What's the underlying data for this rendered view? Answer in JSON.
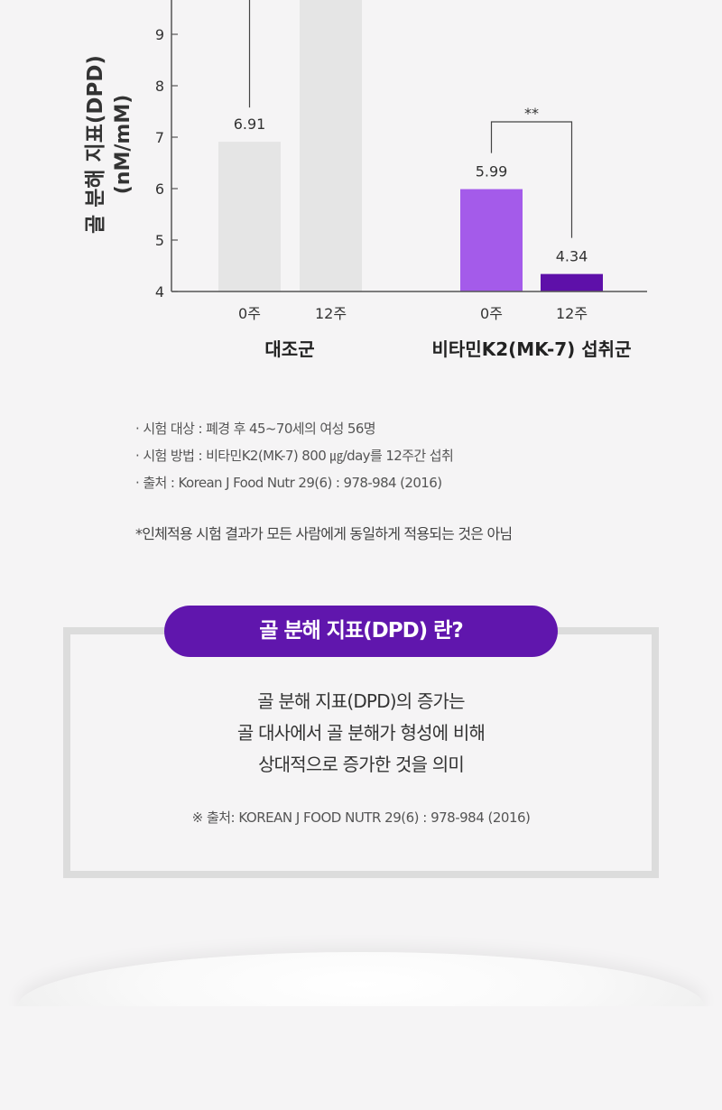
{
  "chart_data": {
    "type": "bar",
    "ylabel": "골 분해 지표(DPD)",
    "yunit": "(nM/mM)",
    "ylim": [
      4,
      10
    ],
    "yticks": [
      4,
      5,
      6,
      7,
      8,
      9
    ],
    "groups": [
      {
        "name": "대조군",
        "bars": [
          {
            "label": "0주",
            "value": 6.91,
            "value_label": "6.91",
            "color": "#e5e5e5"
          },
          {
            "label": "12주",
            "value": 10,
            "value_label": "",
            "color": "#e5e5e5"
          }
        ]
      },
      {
        "name": "비타민K2(MK-7) 섭취군",
        "bars": [
          {
            "label": "0주",
            "value": 5.99,
            "value_label": "5.99",
            "color": "#a45bea"
          },
          {
            "label": "12주",
            "value": 4.34,
            "value_label": "4.34",
            "color": "#5e10a9"
          }
        ]
      }
    ],
    "significance": {
      "label": "**",
      "group": 1
    }
  },
  "notes": [
    "· 시험 대상 : 폐경 후 45~70세의 여성 56명",
    "· 시험 방법 : 비타민K2(MK-7) 800 ㎍/day를 12주간 섭취",
    "· 출처 : Korean J Food Nutr 29(6) : 978-984 (2016)"
  ],
  "disclaimer": "*인체적용 시험 결과가 모든 사람에게 동일하게 적용되는 것은 아님",
  "info": {
    "title": "골 분해 지표(DPD) 란?",
    "lines": [
      "골 분해 지표(DPD)의 증가는",
      "골 대사에서 골 분해가 형성에 비해",
      "상대적으로 증가한 것을 의미"
    ],
    "source": "※ 출처: KOREAN J FOOD NUTR 29(6) : 978-984 (2016)"
  }
}
